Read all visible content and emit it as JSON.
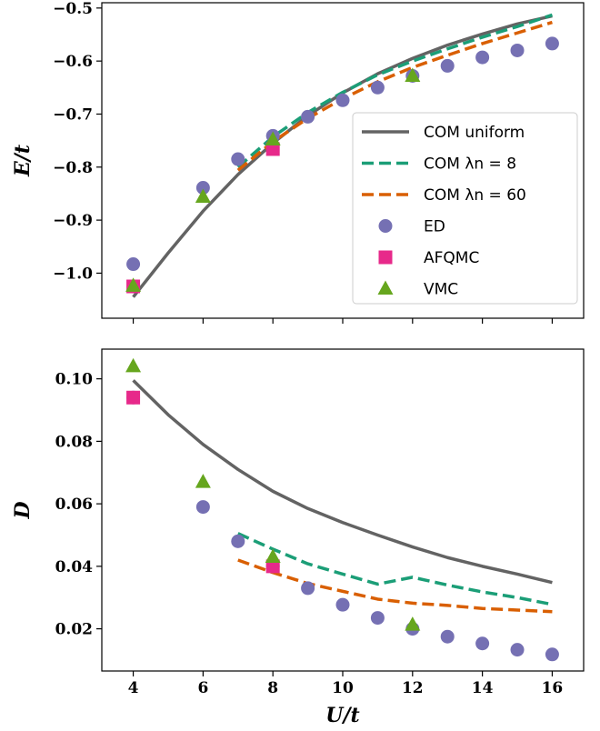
{
  "chart_data": [
    {
      "type": "line",
      "xlabel": "",
      "ylabel": "E/t",
      "xlim": [
        3.1,
        16.9
      ],
      "ylim": [
        -1.085,
        -0.49
      ],
      "x_ticks": [
        4,
        6,
        8,
        10,
        12,
        14,
        16
      ],
      "y_ticks": [
        -1.0,
        -0.9,
        -0.8,
        -0.7,
        -0.6,
        -0.5
      ],
      "y_tick_labels": [
        "−1.0",
        "−0.9",
        "−0.8",
        "−0.7",
        "−0.6",
        "−0.5"
      ],
      "x_tick_labels_visible": false,
      "legend_position": "lower-right",
      "series": [
        {
          "name": "COM uniform",
          "style": "solid",
          "color": "#636363",
          "x": [
            4,
            5,
            6,
            7,
            8,
            9,
            10,
            11,
            12,
            13,
            14,
            15,
            16
          ],
          "y": [
            -1.045,
            -0.962,
            -0.883,
            -0.814,
            -0.755,
            -0.703,
            -0.66,
            -0.624,
            -0.595,
            -0.57,
            -0.549,
            -0.53,
            -0.515
          ]
        },
        {
          "name": "COM λn = 8",
          "style": "dashed",
          "color": "#1b9e77",
          "x": [
            7,
            8,
            9,
            10,
            11,
            12,
            13,
            14,
            15,
            16
          ],
          "y": [
            -0.8,
            -0.743,
            -0.697,
            -0.659,
            -0.626,
            -0.6,
            -0.577,
            -0.555,
            -0.535,
            -0.513
          ]
        },
        {
          "name": "COM λn = 60",
          "style": "dashed",
          "color": "#d95f02",
          "x": [
            7,
            8,
            9,
            10,
            11,
            12,
            13,
            14,
            15,
            16
          ],
          "y": [
            -0.806,
            -0.752,
            -0.708,
            -0.671,
            -0.639,
            -0.612,
            -0.589,
            -0.567,
            -0.547,
            -0.527
          ]
        },
        {
          "name": "ED",
          "style": "marker-circle",
          "color": "#7570b3",
          "x": [
            4,
            6,
            7,
            8,
            9,
            10,
            11,
            12,
            13,
            14,
            15,
            16
          ],
          "y": [
            -0.983,
            -0.839,
            -0.785,
            -0.741,
            -0.705,
            -0.674,
            -0.65,
            -0.628,
            -0.609,
            -0.593,
            -0.58,
            -0.567
          ]
        },
        {
          "name": "AFQMC",
          "style": "marker-square",
          "color": "#e7298a",
          "x": [
            4,
            8
          ],
          "y": [
            -1.025,
            -0.766
          ]
        },
        {
          "name": "VMC",
          "style": "marker-triangle",
          "color": "#66a61e",
          "x": [
            4,
            6,
            8,
            12
          ],
          "y": [
            -1.024,
            -0.856,
            -0.748,
            -0.628
          ]
        }
      ]
    },
    {
      "type": "line",
      "xlabel": "U/t",
      "ylabel": "D",
      "xlim": [
        3.1,
        16.9
      ],
      "ylim": [
        0.0065,
        0.1095
      ],
      "x_ticks": [
        4,
        6,
        8,
        10,
        12,
        14,
        16
      ],
      "x_tick_labels": [
        "4",
        "6",
        "8",
        "10",
        "12",
        "14",
        "16"
      ],
      "y_ticks": [
        0.02,
        0.04,
        0.06,
        0.08,
        0.1
      ],
      "y_tick_labels": [
        "0.02",
        "0.04",
        "0.06",
        "0.08",
        "0.10"
      ],
      "series": [
        {
          "name": "COM uniform",
          "style": "solid",
          "color": "#636363",
          "x": [
            4,
            5,
            6,
            7,
            8,
            9,
            10,
            11,
            12,
            13,
            14,
            15,
            16
          ],
          "y": [
            0.0995,
            0.0885,
            0.079,
            0.071,
            0.064,
            0.0585,
            0.054,
            0.05,
            0.0462,
            0.0428,
            0.04,
            0.0375,
            0.0348
          ]
        },
        {
          "name": "COM λn = 8",
          "style": "dashed",
          "color": "#1b9e77",
          "x": [
            7,
            8,
            9,
            10,
            11,
            12,
            13,
            14,
            15,
            16
          ],
          "y": [
            0.0505,
            0.0455,
            0.0408,
            0.0375,
            0.0343,
            0.0365,
            0.034,
            0.0318,
            0.03,
            0.0278
          ]
        },
        {
          "name": "COM λn = 60",
          "style": "dashed",
          "color": "#d95f02",
          "x": [
            7,
            8,
            9,
            10,
            11,
            12,
            13,
            14,
            15,
            16
          ],
          "y": [
            0.042,
            0.038,
            0.0345,
            0.032,
            0.0295,
            0.0282,
            0.0275,
            0.0265,
            0.026,
            0.0255
          ]
        },
        {
          "name": "ED",
          "style": "marker-circle",
          "color": "#7570b3",
          "x": [
            4,
            6,
            7,
            8,
            9,
            10,
            11,
            12,
            13,
            14,
            15,
            16
          ],
          "y": [
            0.094,
            0.059,
            0.048,
            0.04,
            0.033,
            0.0277,
            0.0235,
            0.02,
            0.0175,
            0.0153,
            0.0133,
            0.0118
          ]
        },
        {
          "name": "AFQMC",
          "style": "marker-square",
          "color": "#e7298a",
          "x": [
            4,
            8
          ],
          "y": [
            0.094,
            0.04
          ]
        },
        {
          "name": "VMC",
          "style": "marker-triangle",
          "color": "#66a61e",
          "x": [
            4,
            6,
            8,
            12
          ],
          "y": [
            0.104,
            0.067,
            0.043,
            0.0213
          ]
        }
      ]
    }
  ]
}
